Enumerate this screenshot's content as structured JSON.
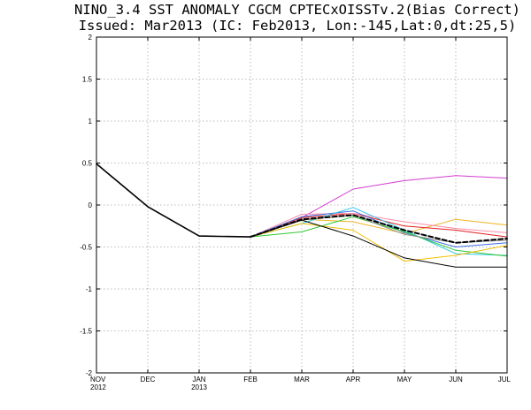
{
  "chart_data": {
    "type": "line",
    "title": "NINO_3.4 SST ANOMALY CGCM CPTECxOISSTv.2(Bias Correct)",
    "subtitle": "Issued: Mar2013 (IC: Feb2013, Lon:-145,Lat:0,dt:25,5)",
    "xlabel": "",
    "ylabel": "",
    "ylim": [
      -2,
      2
    ],
    "yticks": [
      -2,
      -1.5,
      -1,
      -0.5,
      0,
      0.5,
      1,
      1.5,
      2
    ],
    "ytick_labels": [
      "-2",
      "-1.5",
      "-1",
      "-0.5",
      "0",
      "0.5",
      "1",
      "1.5",
      "2"
    ],
    "categories": [
      "NOV",
      "DEC",
      "JAN",
      "FEB",
      "MAR",
      "APR",
      "MAY",
      "JUN",
      "JUL"
    ],
    "category_years": [
      "2012",
      "",
      "2013",
      "",
      "",
      "",
      "",
      "",
      ""
    ],
    "grid": true,
    "series": [
      {
        "name": "observed",
        "color": "#000000",
        "dash": "",
        "width": 1.6,
        "values": [
          0.49,
          -0.02,
          -0.37,
          -0.38,
          null,
          null,
          null,
          null,
          null
        ]
      },
      {
        "name": "member-magenta",
        "color": "#d23cd2",
        "dash": "",
        "width": 1,
        "values": [
          null,
          null,
          null,
          -0.38,
          -0.15,
          0.19,
          0.29,
          0.35,
          0.32
        ]
      },
      {
        "name": "member-orange",
        "color": "#f0b428",
        "dash": "",
        "width": 1,
        "values": [
          null,
          null,
          null,
          -0.38,
          -0.17,
          -0.2,
          -0.34,
          -0.17,
          -0.24
        ]
      },
      {
        "name": "member-red",
        "color": "#e0201e",
        "dash": "",
        "width": 1,
        "values": [
          null,
          null,
          null,
          -0.38,
          -0.15,
          -0.1,
          -0.25,
          -0.3,
          -0.38
        ]
      },
      {
        "name": "member-pink",
        "color": "#ff8ca8",
        "dash": "",
        "width": 1,
        "values": [
          null,
          null,
          null,
          -0.38,
          -0.11,
          -0.1,
          -0.2,
          -0.28,
          -0.33
        ]
      },
      {
        "name": "member-blue",
        "color": "#3c6ee6",
        "dash": "",
        "width": 1,
        "values": [
          null,
          null,
          null,
          -0.38,
          -0.14,
          -0.07,
          -0.33,
          -0.5,
          -0.45
        ]
      },
      {
        "name": "member-cyan",
        "color": "#32c8e6",
        "dash": "",
        "width": 1,
        "values": [
          null,
          null,
          null,
          -0.38,
          -0.22,
          -0.03,
          -0.3,
          -0.58,
          -0.6
        ]
      },
      {
        "name": "member-green",
        "color": "#32c832",
        "dash": "",
        "width": 1,
        "values": [
          null,
          null,
          null,
          -0.38,
          -0.32,
          -0.14,
          -0.32,
          -0.54,
          -0.61
        ]
      },
      {
        "name": "member-yellow",
        "color": "#f0c000",
        "dash": "",
        "width": 1,
        "values": [
          null,
          null,
          null,
          -0.38,
          -0.22,
          -0.3,
          -0.67,
          -0.6,
          -0.48
        ]
      },
      {
        "name": "member-gray",
        "color": "#8c8c8c",
        "dash": "",
        "width": 1,
        "values": [
          null,
          null,
          null,
          -0.38,
          -0.18,
          -0.12,
          -0.35,
          -0.45,
          -0.42
        ]
      },
      {
        "name": "member-black",
        "color": "#000000",
        "dash": "",
        "width": 1,
        "values": [
          null,
          null,
          null,
          -0.38,
          -0.18,
          -0.37,
          -0.63,
          -0.74,
          -0.74
        ]
      },
      {
        "name": "ensemble-mean",
        "color": "#000000",
        "dash": "5 3",
        "width": 2,
        "values": [
          null,
          null,
          null,
          -0.38,
          -0.17,
          -0.12,
          -0.3,
          -0.45,
          -0.4
        ]
      }
    ]
  }
}
